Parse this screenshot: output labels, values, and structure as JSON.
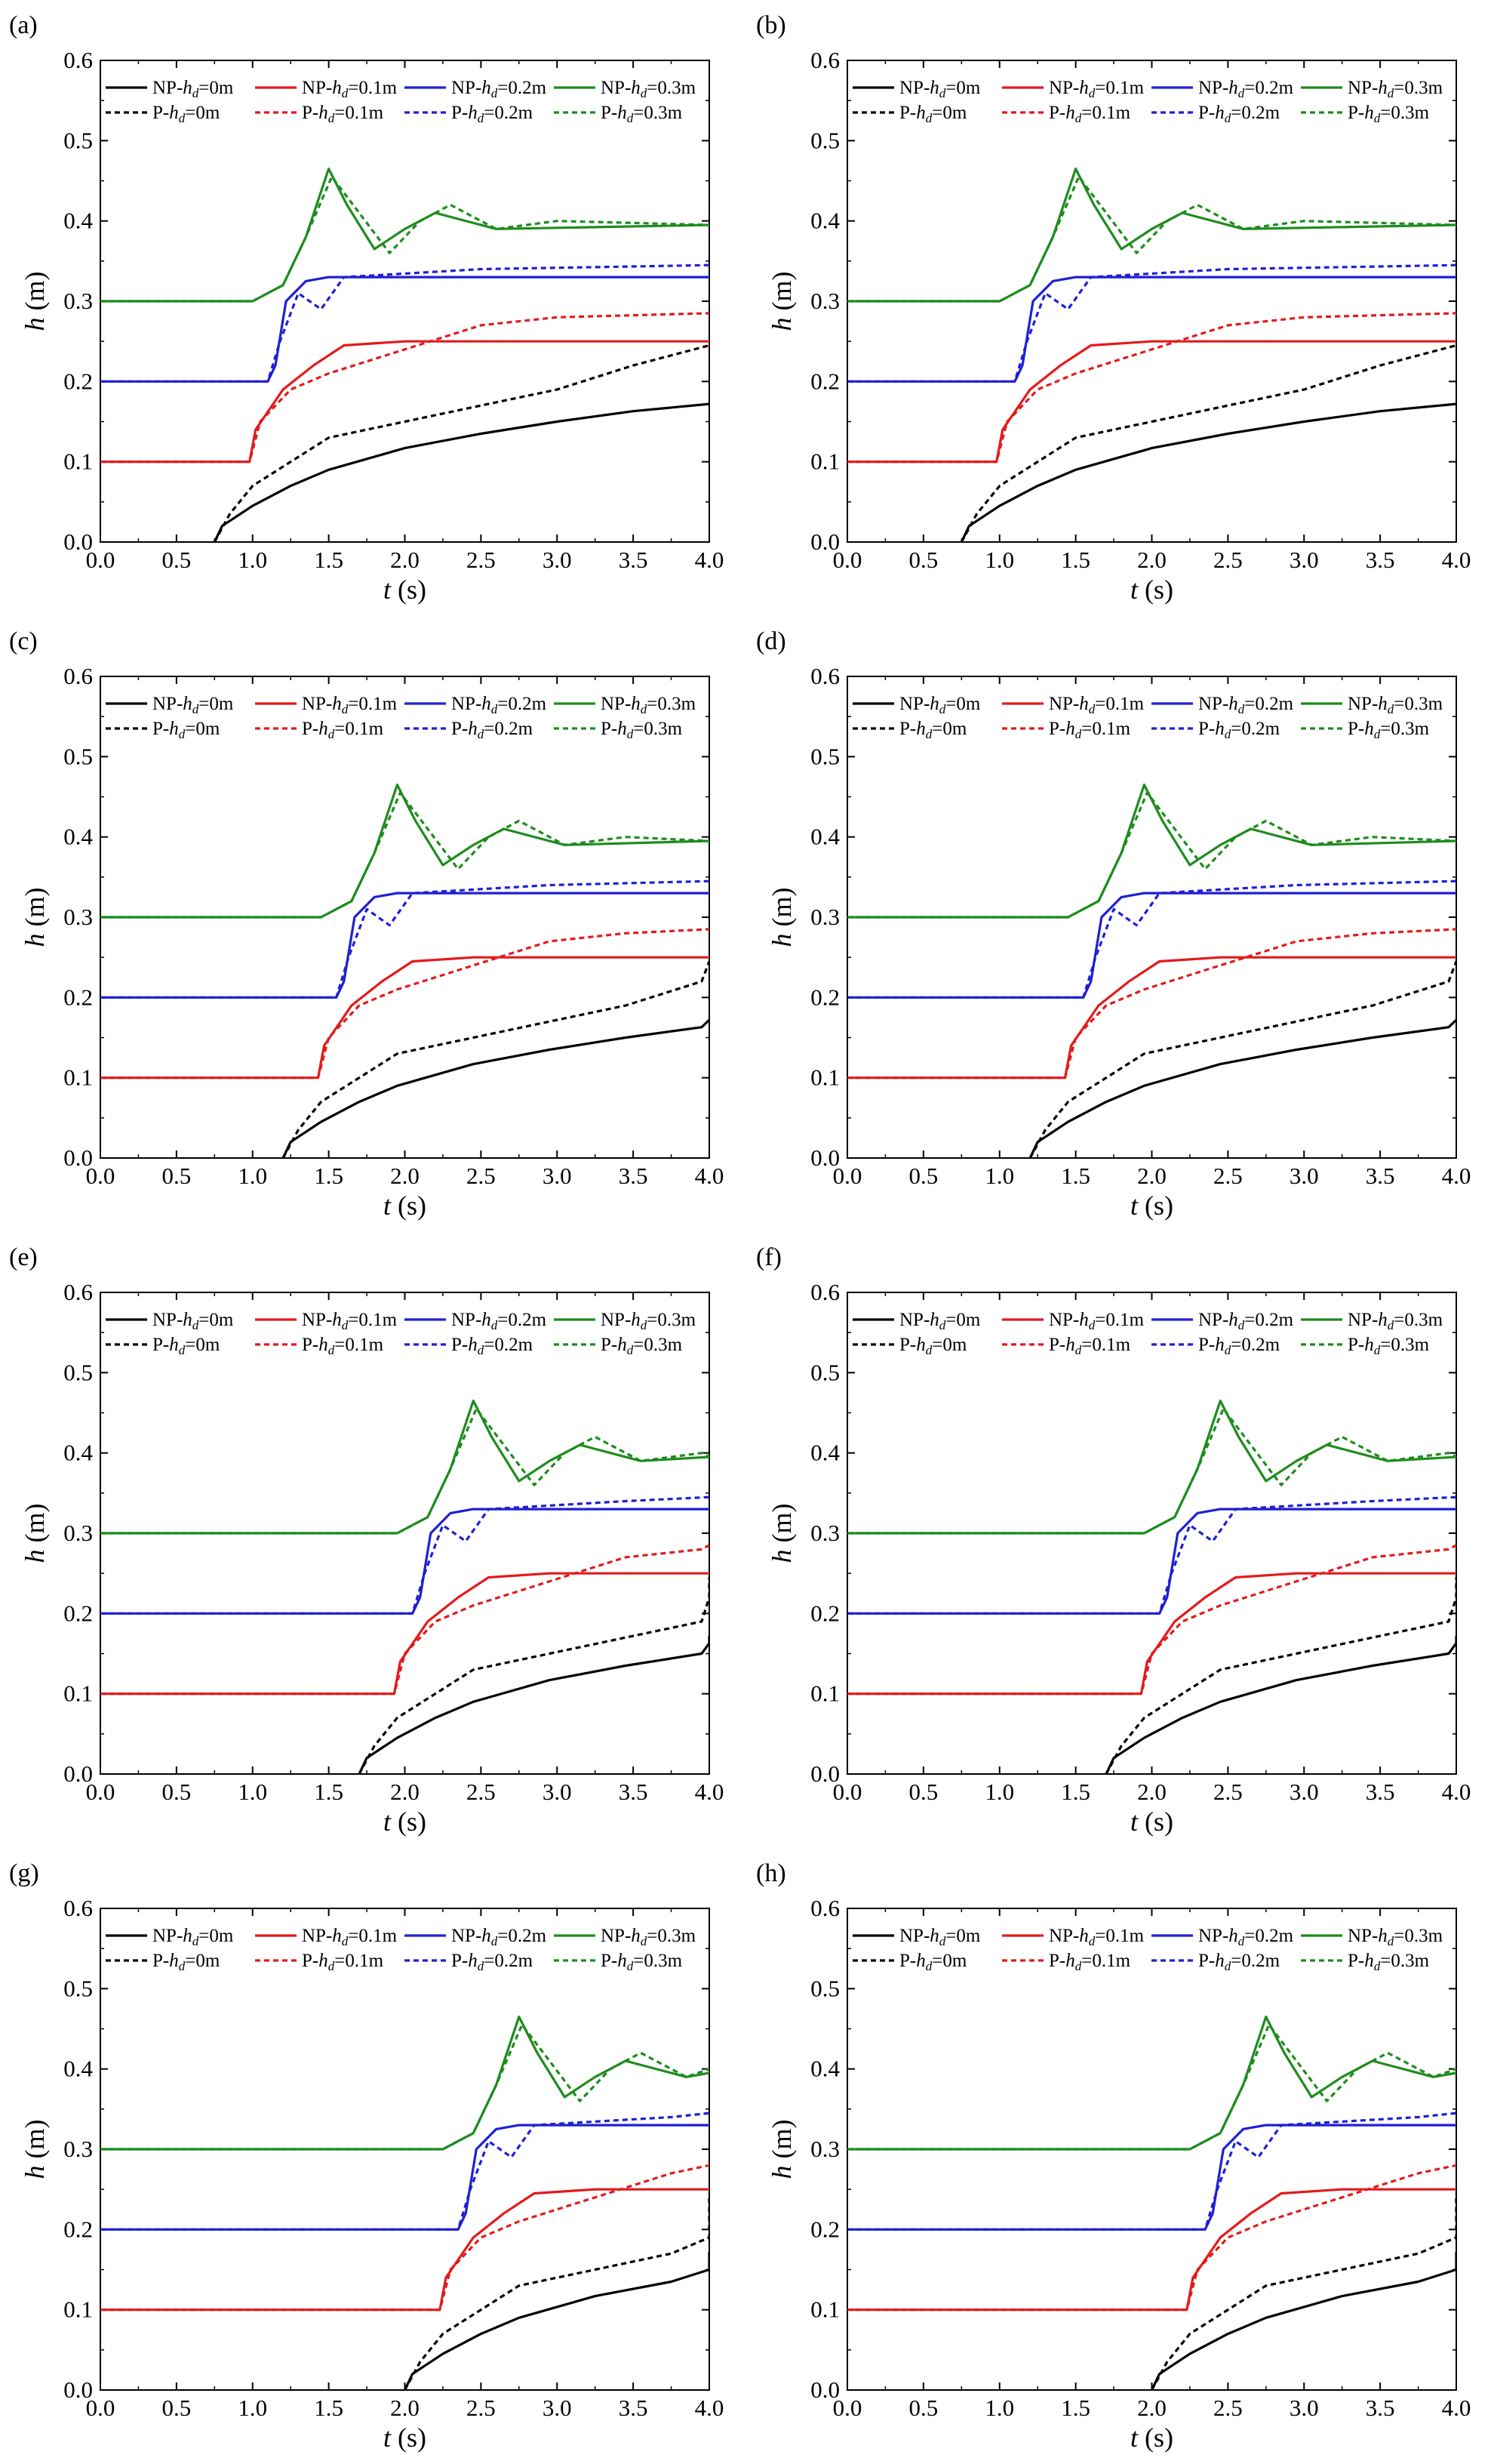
{
  "chart_data": [
    {
      "type": "line",
      "panel_label": "(a)",
      "shift": 0.0,
      "xlabel_var": "t",
      "xlabel_unit": " (s)",
      "ylabel_var": "h",
      "ylabel_unit": " (m)",
      "xlim": [
        0,
        4
      ],
      "ylim": [
        0,
        0.6
      ]
    },
    {
      "type": "line",
      "panel_label": "(b)",
      "shift": 0.0,
      "xlabel_var": "t",
      "xlabel_unit": " (s)",
      "ylabel_var": "h",
      "ylabel_unit": " (m)",
      "xlim": [
        0,
        4
      ],
      "ylim": [
        0,
        0.6
      ]
    },
    {
      "type": "line",
      "panel_label": "(c)",
      "shift": 0.45,
      "xlabel_var": "t",
      "xlabel_unit": " (s)",
      "ylabel_var": "h",
      "ylabel_unit": " (m)",
      "xlim": [
        0,
        4
      ],
      "ylim": [
        0,
        0.6
      ]
    },
    {
      "type": "line",
      "panel_label": "(d)",
      "shift": 0.45,
      "xlabel_var": "t",
      "xlabel_unit": " (s)",
      "ylabel_var": "h",
      "ylabel_unit": " (m)",
      "xlim": [
        0,
        4
      ],
      "ylim": [
        0,
        0.6
      ]
    },
    {
      "type": "line",
      "panel_label": "(e)",
      "shift": 0.95,
      "xlabel_var": "t",
      "xlabel_unit": " (s)",
      "ylabel_var": "h",
      "ylabel_unit": " (m)",
      "xlim": [
        0,
        4
      ],
      "ylim": [
        0,
        0.6
      ]
    },
    {
      "type": "line",
      "panel_label": "(f)",
      "shift": 0.95,
      "xlabel_var": "t",
      "xlabel_unit": " (s)",
      "ylabel_var": "h",
      "ylabel_unit": " (m)",
      "xlim": [
        0,
        4
      ],
      "ylim": [
        0,
        0.6
      ]
    },
    {
      "type": "line",
      "panel_label": "(g)",
      "shift": 1.25,
      "xlabel_var": "t",
      "xlabel_unit": " (s)",
      "ylabel_var": "h",
      "ylabel_unit": " (m)",
      "xlim": [
        0,
        4
      ],
      "ylim": [
        0,
        0.6
      ]
    },
    {
      "type": "line",
      "panel_label": "(h)",
      "shift": 1.25,
      "xlabel_var": "t",
      "xlabel_unit": " (s)",
      "ylabel_var": "h",
      "ylabel_unit": " (m)",
      "xlim": [
        0,
        4
      ],
      "ylim": [
        0,
        0.6
      ]
    }
  ],
  "axes": {
    "xticks": [
      "0.0",
      "0.5",
      "1.0",
      "1.5",
      "2.0",
      "2.5",
      "3.0",
      "3.5",
      "4.0"
    ],
    "yticks": [
      "0.0",
      "0.1",
      "0.2",
      "0.3",
      "0.4",
      "0.5",
      "0.6"
    ]
  },
  "legend": [
    {
      "prefix": "NP-",
      "var": "h",
      "sub": "d",
      "suffix": "=0m",
      "color": "#000000",
      "style": "solid"
    },
    {
      "prefix": "NP-",
      "var": "h",
      "sub": "d",
      "suffix": "=0.1m",
      "color": "#e31a1c",
      "style": "solid"
    },
    {
      "prefix": "NP-",
      "var": "h",
      "sub": "d",
      "suffix": "=0.2m",
      "color": "#1f1fd6",
      "style": "solid"
    },
    {
      "prefix": "NP-",
      "var": "h",
      "sub": "d",
      "suffix": "=0.3m",
      "color": "#1e8c1e",
      "style": "solid"
    },
    {
      "prefix": "P-",
      "var": "h",
      "sub": "d",
      "suffix": "=0m",
      "color": "#000000",
      "style": "dashed"
    },
    {
      "prefix": "P-",
      "var": "h",
      "sub": "d",
      "suffix": "=0.1m",
      "color": "#e31a1c",
      "style": "dashed"
    },
    {
      "prefix": "P-",
      "var": "h",
      "sub": "d",
      "suffix": "=0.2m",
      "color": "#1f1fd6",
      "style": "dashed"
    },
    {
      "prefix": "P-",
      "var": "h",
      "sub": "d",
      "suffix": "=0.3m",
      "color": "#1e8c1e",
      "style": "dashed"
    }
  ],
  "series_curves": {
    "NP-hd=0m": [
      [
        0.75,
        0
      ],
      [
        0.8,
        0.02
      ],
      [
        1.0,
        0.045
      ],
      [
        1.25,
        0.07
      ],
      [
        1.5,
        0.09
      ],
      [
        2.0,
        0.117
      ],
      [
        2.5,
        0.135
      ],
      [
        3.0,
        0.15
      ],
      [
        3.5,
        0.163
      ],
      [
        4.0,
        0.172
      ]
    ],
    "P-hd=0m": [
      [
        0.75,
        0
      ],
      [
        0.85,
        0.035
      ],
      [
        1.0,
        0.07
      ],
      [
        1.25,
        0.1
      ],
      [
        1.5,
        0.13
      ],
      [
        2.0,
        0.15
      ],
      [
        2.5,
        0.17
      ],
      [
        3.0,
        0.19
      ],
      [
        3.5,
        0.22
      ],
      [
        4.0,
        0.245
      ]
    ],
    "NP-hd=0.1m": [
      [
        0,
        0.1
      ],
      [
        0.98,
        0.1
      ],
      [
        1.02,
        0.14
      ],
      [
        1.2,
        0.19
      ],
      [
        1.4,
        0.22
      ],
      [
        1.6,
        0.245
      ],
      [
        2.0,
        0.25
      ],
      [
        4.0,
        0.25
      ]
    ],
    "P-hd=0.1m": [
      [
        0,
        0.1
      ],
      [
        0.98,
        0.1
      ],
      [
        1.05,
        0.15
      ],
      [
        1.25,
        0.19
      ],
      [
        1.5,
        0.21
      ],
      [
        2.0,
        0.24
      ],
      [
        2.5,
        0.27
      ],
      [
        3.0,
        0.28
      ],
      [
        4.0,
        0.285
      ]
    ],
    "NP-hd=0.2m": [
      [
        0,
        0.2
      ],
      [
        1.1,
        0.2
      ],
      [
        1.15,
        0.22
      ],
      [
        1.22,
        0.3
      ],
      [
        1.35,
        0.325
      ],
      [
        1.5,
        0.33
      ],
      [
        4.0,
        0.33
      ]
    ],
    "P-hd=0.2m": [
      [
        0,
        0.2
      ],
      [
        1.1,
        0.2
      ],
      [
        1.18,
        0.25
      ],
      [
        1.3,
        0.31
      ],
      [
        1.45,
        0.29
      ],
      [
        1.6,
        0.33
      ],
      [
        2.5,
        0.34
      ],
      [
        4.0,
        0.345
      ]
    ],
    "NP-hd=0.3m": [
      [
        0,
        0.3
      ],
      [
        1.0,
        0.3
      ],
      [
        1.2,
        0.32
      ],
      [
        1.35,
        0.38
      ],
      [
        1.5,
        0.465
      ],
      [
        1.62,
        0.42
      ],
      [
        1.8,
        0.365
      ],
      [
        2.0,
        0.39
      ],
      [
        2.2,
        0.41
      ],
      [
        2.6,
        0.39
      ],
      [
        4.0,
        0.395
      ]
    ],
    "P-hd=0.3m": [
      [
        0,
        0.3
      ],
      [
        1.0,
        0.3
      ],
      [
        1.2,
        0.32
      ],
      [
        1.35,
        0.38
      ],
      [
        1.52,
        0.455
      ],
      [
        1.7,
        0.41
      ],
      [
        1.9,
        0.36
      ],
      [
        2.1,
        0.4
      ],
      [
        2.3,
        0.42
      ],
      [
        2.6,
        0.39
      ],
      [
        3.0,
        0.4
      ],
      [
        4.0,
        0.395
      ]
    ]
  }
}
